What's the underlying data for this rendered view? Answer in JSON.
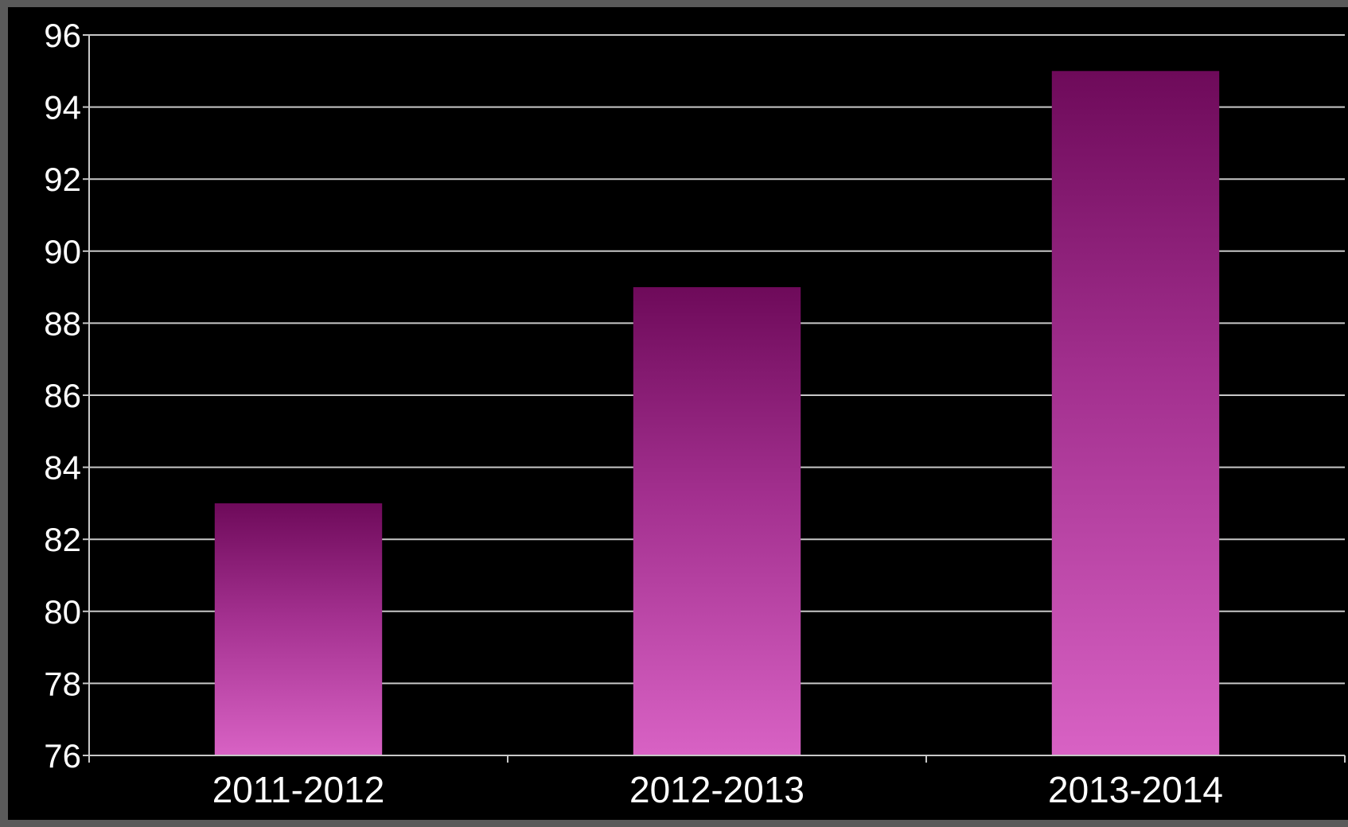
{
  "chart_data": {
    "type": "bar",
    "title": "",
    "xlabel": "",
    "ylabel": "",
    "categories": [
      "2011-2012",
      "2012-2013",
      "2013-2014"
    ],
    "values": [
      83,
      89,
      95
    ],
    "ylim": [
      76,
      96
    ],
    "yticks": [
      "76",
      "78",
      "80",
      "82",
      "84",
      "86",
      "88",
      "90",
      "92",
      "94",
      "96"
    ],
    "grid": true,
    "legend": "none",
    "colors": {
      "background": "#000000",
      "frame": "#5a5a5a",
      "gridline": "#c8c8c8",
      "axis": "#c8c8c8",
      "text": "#ffffff",
      "bar_top": "#6e0a5a",
      "bar_mid": "#a3308f",
      "bar_bottom": "#d862c4"
    }
  }
}
